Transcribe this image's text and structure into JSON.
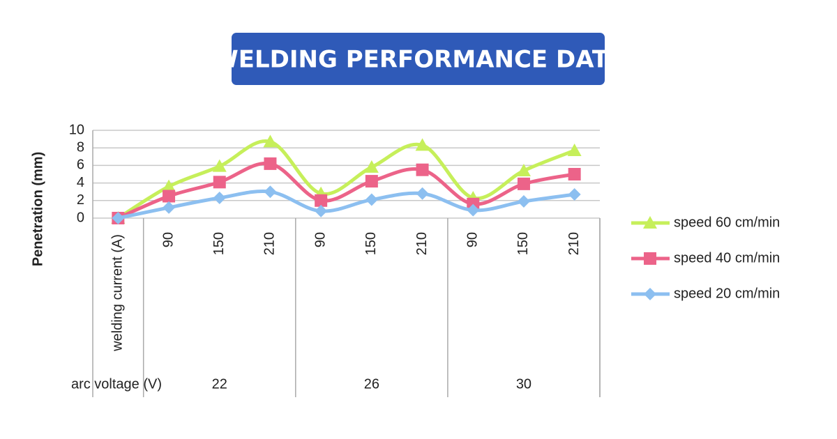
{
  "chart_data": {
    "type": "line",
    "title": "WELDING PERFORMANCE DATA",
    "y_label": "Penetration (mm)",
    "categories": [
      "welding current (A)",
      90,
      150,
      210,
      90,
      150,
      210,
      90,
      150,
      210
    ],
    "group_axis_label": "arc voltage (V)",
    "groups": [
      22,
      26,
      30
    ],
    "ylim": [
      0,
      10
    ],
    "yticks": [
      0,
      2,
      4,
      6,
      8,
      10
    ],
    "grid": true,
    "legend": "right",
    "series": [
      {
        "name": "speed 60 cm/min",
        "color": "#c6ef5a",
        "marker": "triangle",
        "values": [
          0,
          3.6,
          5.9,
          8.7,
          2.8,
          5.8,
          8.3,
          2.3,
          5.4,
          7.7
        ]
      },
      {
        "name": "speed 40 cm/min",
        "color": "#ec6389",
        "marker": "square",
        "values": [
          0,
          2.5,
          4.1,
          6.2,
          2.0,
          4.2,
          5.5,
          1.6,
          3.9,
          5.0
        ]
      },
      {
        "name": "speed 20 cm/min",
        "color": "#8cbff0",
        "marker": "diamond",
        "values": [
          0,
          1.2,
          2.3,
          3.0,
          0.8,
          2.1,
          2.8,
          0.9,
          1.9,
          2.7
        ]
      }
    ]
  }
}
